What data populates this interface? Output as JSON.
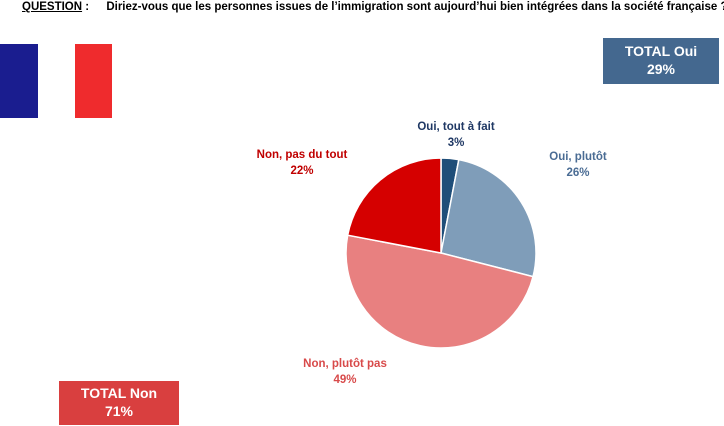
{
  "question": {
    "label": "QUESTION",
    "separator": ":",
    "text": "Diriez-vous que les personnes issues de l’immigration sont aujourd’hui bien intégrées dans la société française ?"
  },
  "totals": {
    "oui": {
      "label": "TOTAL Oui",
      "value": "29%",
      "color": "#44688f"
    },
    "non": {
      "label": "TOTAL Non",
      "value": "71%",
      "color": "#d93f3f"
    }
  },
  "flag_colors": [
    "#1a1d8f",
    "#ffffff",
    "#ef2b2d"
  ],
  "chart_data": {
    "type": "pie",
    "start": "12 o'clock, clockwise",
    "slices": [
      {
        "label": "Oui, tout à fait",
        "value": 3,
        "display": "3%",
        "color": "#1f4e79",
        "label_color": "#1f3864"
      },
      {
        "label": "Oui, plutôt",
        "value": 26,
        "display": "26%",
        "color": "#7f9db9",
        "label_color": "#4a6c94"
      },
      {
        "label": "Non, plutôt pas",
        "value": 49,
        "display": "49%",
        "color": "#e88080",
        "label_color": "#d84a4a"
      },
      {
        "label": "Non, pas du tout",
        "value": 22,
        "display": "22%",
        "color": "#d50000",
        "label_color": "#c00000"
      }
    ]
  }
}
